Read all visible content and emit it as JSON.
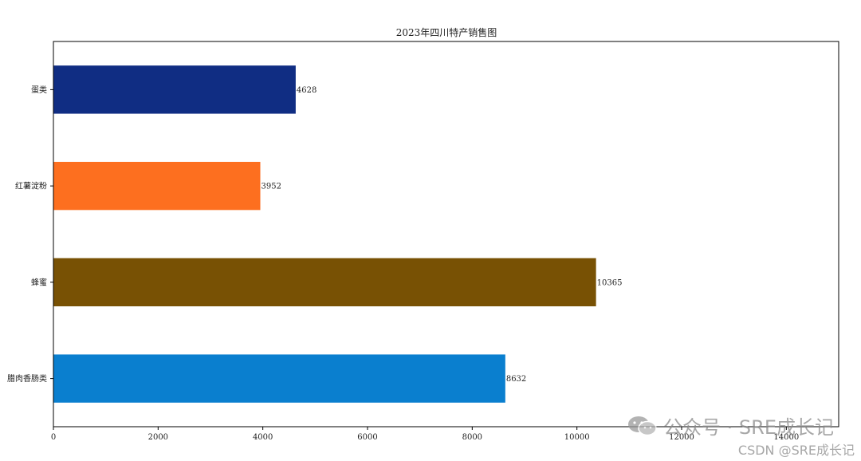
{
  "chart_data": {
    "type": "bar",
    "orientation": "horizontal",
    "title": "2023年四川特产销售图",
    "categories": [
      "腊肉香肠类",
      "蜂蜜",
      "红薯淀粉",
      "蛋类"
    ],
    "values": [
      8632,
      10365,
      3952,
      4628
    ],
    "colors": [
      "#0a7fcf",
      "#785104",
      "#fd6f1f",
      "#102d83"
    ],
    "xlim": [
      0,
      15000
    ],
    "x_ticks": [
      0,
      2000,
      4000,
      6000,
      8000,
      10000,
      12000,
      14000
    ],
    "xlabel": "",
    "ylabel": "",
    "grid": false,
    "legend": false
  },
  "watermark": {
    "line1": "公众号 · SRE成长记",
    "line2": "CSDN @SRE成长记",
    "icon": "wechat-icon"
  }
}
